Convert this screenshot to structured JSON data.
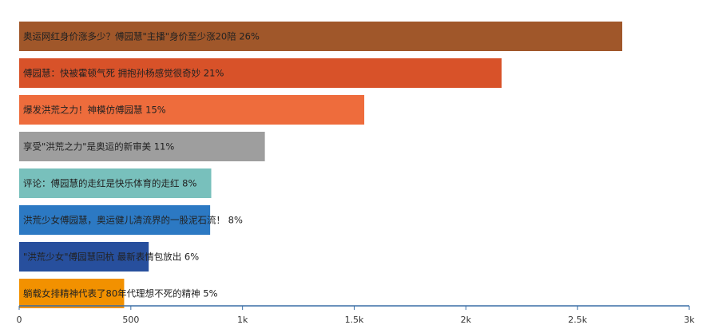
{
  "chart_data": {
    "type": "bar",
    "orientation": "horizontal",
    "title": "",
    "xlabel": "",
    "ylabel": "",
    "xlim": [
      0,
      3000
    ],
    "grid": false,
    "legend": "none",
    "ticks": [
      "0",
      "500",
      "1k",
      "1.5k",
      "2k",
      "2.5k",
      "3k"
    ],
    "tick_values": [
      0,
      500,
      1000,
      1500,
      2000,
      2500,
      3000
    ],
    "categories": [
      "奥运网红身价涨多少？傅园慧\"主播\"身价至少涨20陪 26%",
      "傅园慧：快被霍顿气死 拥抱孙杨感觉很奇妙 21%",
      "爆发洪荒之力！神模仿傅园慧 15%",
      "享受\"洪荒之力\"是奥运的新审美 11%",
      "评论：傅园慧的走红是快乐体育的走红 8%",
      "洪荒少女傅园慧，奥运健儿清流界的一股泥石流！ 8%",
      "\"洪荒少女\"傅园慧回杭 最新表情包放出 6%",
      "躺载女排精神代表了80年代理想不死的精神 5%"
    ],
    "values": [
      2700,
      2160,
      1545,
      1100,
      860,
      855,
      580,
      470
    ],
    "colors": [
      "#A0572A",
      "#D85229",
      "#EE6C3C",
      "#9E9E9E",
      "#78C0BC",
      "#2C79C3",
      "#274F9D",
      "#F29100"
    ],
    "axis_color": "#3A6EA5"
  }
}
